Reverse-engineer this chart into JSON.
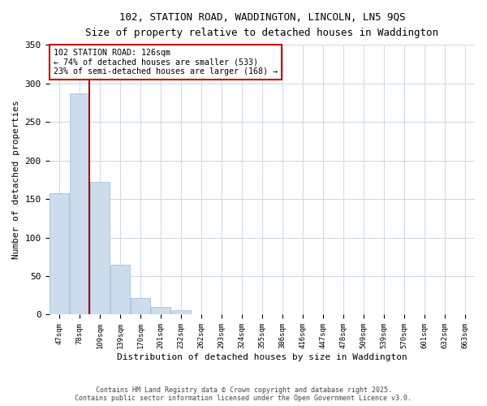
{
  "title_line1": "102, STATION ROAD, WADDINGTON, LINCOLN, LN5 9QS",
  "title_line2": "Size of property relative to detached houses in Waddington",
  "xlabel": "Distribution of detached houses by size in Waddington",
  "ylabel": "Number of detached properties",
  "bar_color": "#ccdcec",
  "bar_edge_color": "#b0c8dc",
  "categories": [
    "47sqm",
    "78sqm",
    "109sqm",
    "139sqm",
    "170sqm",
    "201sqm",
    "232sqm",
    "262sqm",
    "293sqm",
    "324sqm",
    "355sqm",
    "386sqm",
    "416sqm",
    "447sqm",
    "478sqm",
    "509sqm",
    "539sqm",
    "570sqm",
    "601sqm",
    "632sqm",
    "663sqm"
  ],
  "values": [
    157,
    287,
    172,
    65,
    22,
    10,
    6,
    1,
    0,
    0,
    0,
    0,
    0,
    0,
    0,
    0,
    0,
    0,
    0,
    0,
    1
  ],
  "ylim": [
    0,
    350
  ],
  "yticks": [
    0,
    50,
    100,
    150,
    200,
    250,
    300,
    350
  ],
  "vline_index": 2,
  "subject_line_label": "102 STATION ROAD: 126sqm",
  "annotation_line1": "← 74% of detached houses are smaller (533)",
  "annotation_line2": "23% of semi-detached houses are larger (168) →",
  "vline_color": "#aa0000",
  "box_edge_color": "#cc0000",
  "footer_line1": "Contains HM Land Registry data © Crown copyright and database right 2025.",
  "footer_line2": "Contains public sector information licensed under the Open Government Licence v3.0.",
  "background_color": "#ffffff",
  "plot_bg_color": "#ffffff",
  "grid_color": "#d0dce8"
}
